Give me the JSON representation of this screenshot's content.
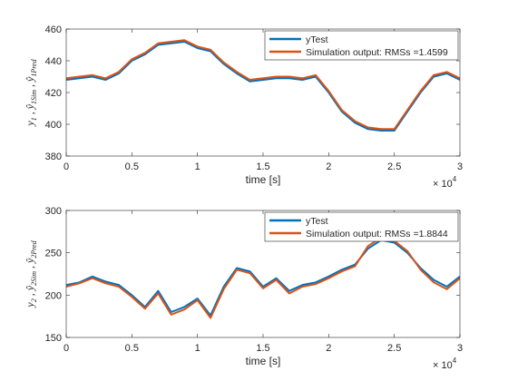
{
  "figure": {
    "background": "#ffffff"
  },
  "chart_data": [
    {
      "type": "line",
      "xlabel": "time [s]",
      "ylabel_main": "y",
      "ylabel_main_sub": "1",
      "ylabel_sep": " , ",
      "ylabel_hat": "ŷ",
      "ylabel_sub1": "1Sim",
      "ylabel_sub2": "1Pred",
      "x_exponent_base": "× 10",
      "x_exponent_power": "4",
      "xlim": [
        0,
        3
      ],
      "ylim": [
        380,
        460
      ],
      "xticks": [
        0,
        0.5,
        1,
        1.5,
        2,
        2.5,
        3
      ],
      "xtick_labels": [
        "0",
        "0.5",
        "1",
        "1.5",
        "2",
        "2.5",
        "3"
      ],
      "yticks": [
        380,
        400,
        420,
        440,
        460
      ],
      "ytick_labels": [
        "380",
        "400",
        "420",
        "440",
        "460"
      ],
      "legend_position": "top-right",
      "grid": false,
      "series": [
        {
          "name": "yTest",
          "color": "#0072bd",
          "x": [
            0,
            0.1,
            0.2,
            0.3,
            0.4,
            0.5,
            0.6,
            0.7,
            0.8,
            0.9,
            1.0,
            1.1,
            1.2,
            1.3,
            1.4,
            1.5,
            1.6,
            1.7,
            1.8,
            1.9,
            2.0,
            2.1,
            2.2,
            2.3,
            2.4,
            2.5,
            2.6,
            2.7,
            2.8,
            2.9,
            3.0
          ],
          "values": [
            428,
            429,
            430,
            428,
            432,
            440,
            444,
            450,
            451,
            452,
            448,
            446,
            438,
            432,
            427,
            428,
            429,
            429,
            428,
            430,
            420,
            408,
            401,
            397,
            396,
            396,
            408,
            420,
            430,
            432,
            428
          ]
        },
        {
          "name": "Simulation output: RMSs =1.4599",
          "color": "#d95319",
          "x": [
            0,
            0.1,
            0.2,
            0.3,
            0.4,
            0.5,
            0.6,
            0.7,
            0.8,
            0.9,
            1.0,
            1.1,
            1.2,
            1.3,
            1.4,
            1.5,
            1.6,
            1.7,
            1.8,
            1.9,
            2.0,
            2.1,
            2.2,
            2.3,
            2.4,
            2.5,
            2.6,
            2.7,
            2.8,
            2.9,
            3.0
          ],
          "values": [
            429,
            430,
            431,
            429,
            433,
            441,
            445,
            451,
            452,
            453,
            449,
            447,
            439,
            433,
            428,
            429,
            430,
            430,
            429,
            431,
            421,
            409,
            402,
            398,
            397,
            397,
            409,
            421,
            431,
            433,
            429
          ]
        }
      ]
    },
    {
      "type": "line",
      "xlabel": "time [s]",
      "ylabel_main": "y",
      "ylabel_main_sub": "2",
      "ylabel_sep": " , ",
      "ylabel_hat": "ŷ",
      "ylabel_sub1": "2Sim",
      "ylabel_sub2": "2Pred",
      "x_exponent_base": "× 10",
      "x_exponent_power": "4",
      "xlim": [
        0,
        3
      ],
      "ylim": [
        150,
        300
      ],
      "xticks": [
        0,
        0.5,
        1,
        1.5,
        2,
        2.5,
        3
      ],
      "xtick_labels": [
        "0",
        "0.5",
        "1",
        "1.5",
        "2",
        "2.5",
        "3"
      ],
      "yticks": [
        150,
        200,
        250,
        300
      ],
      "ytick_labels": [
        "150",
        "200",
        "250",
        "300"
      ],
      "legend_position": "top-right",
      "grid": false,
      "series": [
        {
          "name": "yTest",
          "color": "#0072bd",
          "x": [
            0,
            0.1,
            0.2,
            0.3,
            0.4,
            0.5,
            0.6,
            0.7,
            0.8,
            0.9,
            1.0,
            1.1,
            1.2,
            1.3,
            1.4,
            1.5,
            1.6,
            1.7,
            1.8,
            1.9,
            2.0,
            2.1,
            2.2,
            2.3,
            2.4,
            2.5,
            2.6,
            2.7,
            2.8,
            2.9,
            3.0
          ],
          "values": [
            212,
            215,
            222,
            216,
            212,
            200,
            186,
            205,
            180,
            186,
            196,
            176,
            210,
            232,
            228,
            210,
            220,
            205,
            212,
            215,
            222,
            230,
            236,
            255,
            265,
            262,
            250,
            232,
            218,
            210,
            222
          ]
        },
        {
          "name": "Simulation output: RMSs =1.8844",
          "color": "#d95319",
          "x": [
            0,
            0.1,
            0.2,
            0.3,
            0.4,
            0.5,
            0.6,
            0.7,
            0.8,
            0.9,
            1.0,
            1.1,
            1.2,
            1.3,
            1.4,
            1.5,
            1.6,
            1.7,
            1.8,
            1.9,
            2.0,
            2.1,
            2.2,
            2.3,
            2.4,
            2.5,
            2.6,
            2.7,
            2.8,
            2.9,
            3.0
          ],
          "values": [
            210,
            214,
            220,
            214,
            210,
            198,
            184,
            202,
            177,
            183,
            194,
            173,
            207,
            230,
            226,
            208,
            218,
            202,
            210,
            213,
            220,
            228,
            234,
            258,
            268,
            264,
            252,
            230,
            215,
            207,
            220
          ]
        }
      ]
    }
  ]
}
